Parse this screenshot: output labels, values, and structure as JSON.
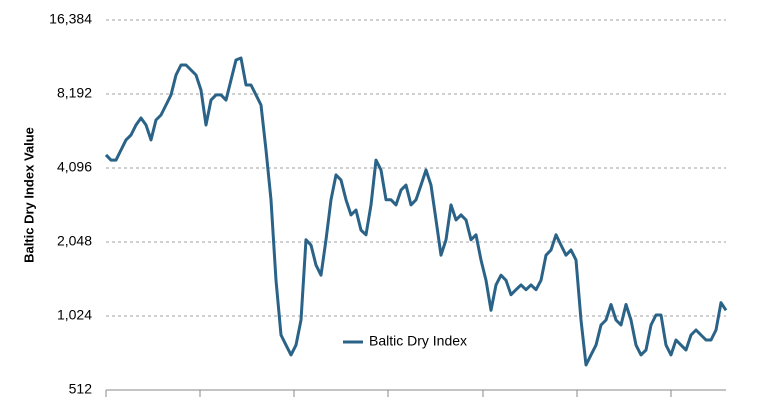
{
  "chart_data": {
    "type": "line",
    "ylabel": "Baltic Dry Index Value",
    "yscale": "log",
    "log_base": 2,
    "ylim": [
      512,
      16384
    ],
    "yticks": [
      {
        "value": 512,
        "label": "512"
      },
      {
        "value": 1024,
        "label": "1,024"
      },
      {
        "value": 2048,
        "label": "2,048"
      },
      {
        "value": 4096,
        "label": "4,096"
      },
      {
        "value": 8192,
        "label": "8,192"
      },
      {
        "value": 16384,
        "label": "16,384"
      }
    ],
    "grid": true,
    "legend": "center",
    "categories": [
      null,
      null,
      null,
      null,
      null,
      null,
      null,
      null,
      null,
      null,
      null,
      null,
      null,
      null,
      null,
      null,
      null,
      null,
      null,
      null,
      null,
      null,
      null,
      null,
      null,
      null,
      null,
      null,
      null,
      null,
      null,
      null,
      null,
      null,
      null,
      null,
      null,
      null,
      null,
      null,
      null,
      null,
      null,
      null,
      null,
      null,
      null,
      null,
      null,
      null,
      null,
      null,
      null,
      null,
      null,
      null,
      null,
      null,
      null,
      null,
      null,
      null,
      null,
      null,
      null,
      null,
      null,
      null,
      null,
      null,
      null,
      null,
      null,
      null,
      null,
      null,
      null,
      null,
      null,
      null,
      null,
      null,
      null,
      null,
      null,
      null,
      null,
      null,
      null,
      null,
      null,
      null,
      null,
      null,
      null,
      null,
      null,
      null,
      null,
      null,
      null,
      null,
      null,
      null,
      null,
      null,
      null,
      null,
      null,
      null,
      null,
      null,
      null,
      null,
      null,
      null,
      null,
      null,
      null,
      null,
      null,
      null,
      null,
      null,
      null
    ],
    "series": [
      {
        "name": "Baltic Dry Index",
        "color": "#2a6387",
        "values": [
          4630,
          4410,
          4410,
          4850,
          5330,
          5580,
          6130,
          6540,
          6130,
          5330,
          6420,
          6730,
          7390,
          8120,
          9790,
          10750,
          10750,
          10260,
          9790,
          8500,
          6130,
          7740,
          8120,
          8120,
          7740,
          9340,
          11260,
          11480,
          8910,
          8910,
          8120,
          7390,
          4850,
          3040,
          1430,
          857,
          780,
          711,
          780,
          986,
          2090,
          1990,
          1650,
          1500,
          2090,
          3040,
          3840,
          3660,
          3040,
          2640,
          2760,
          2290,
          2190,
          2900,
          4410,
          4020,
          3040,
          3040,
          2900,
          3330,
          3490,
          2900,
          3040,
          3490,
          4020,
          3490,
          2520,
          1810,
          2090,
          2900,
          2520,
          2640,
          2520,
          2090,
          2190,
          1730,
          1430,
          1080,
          1370,
          1500,
          1430,
          1250,
          1310,
          1370,
          1310,
          1370,
          1310,
          1430,
          1810,
          1900,
          2190,
          1990,
          1810,
          1900,
          1730,
          986,
          647,
          711,
          780,
          941,
          986,
          1140,
          986,
          941,
          1140,
          986,
          780,
          711,
          745,
          941,
          1034,
          1034,
          780,
          711,
          818,
          780,
          745,
          857,
          898,
          857,
          818,
          818,
          898,
          1160,
          1080
        ]
      }
    ]
  }
}
